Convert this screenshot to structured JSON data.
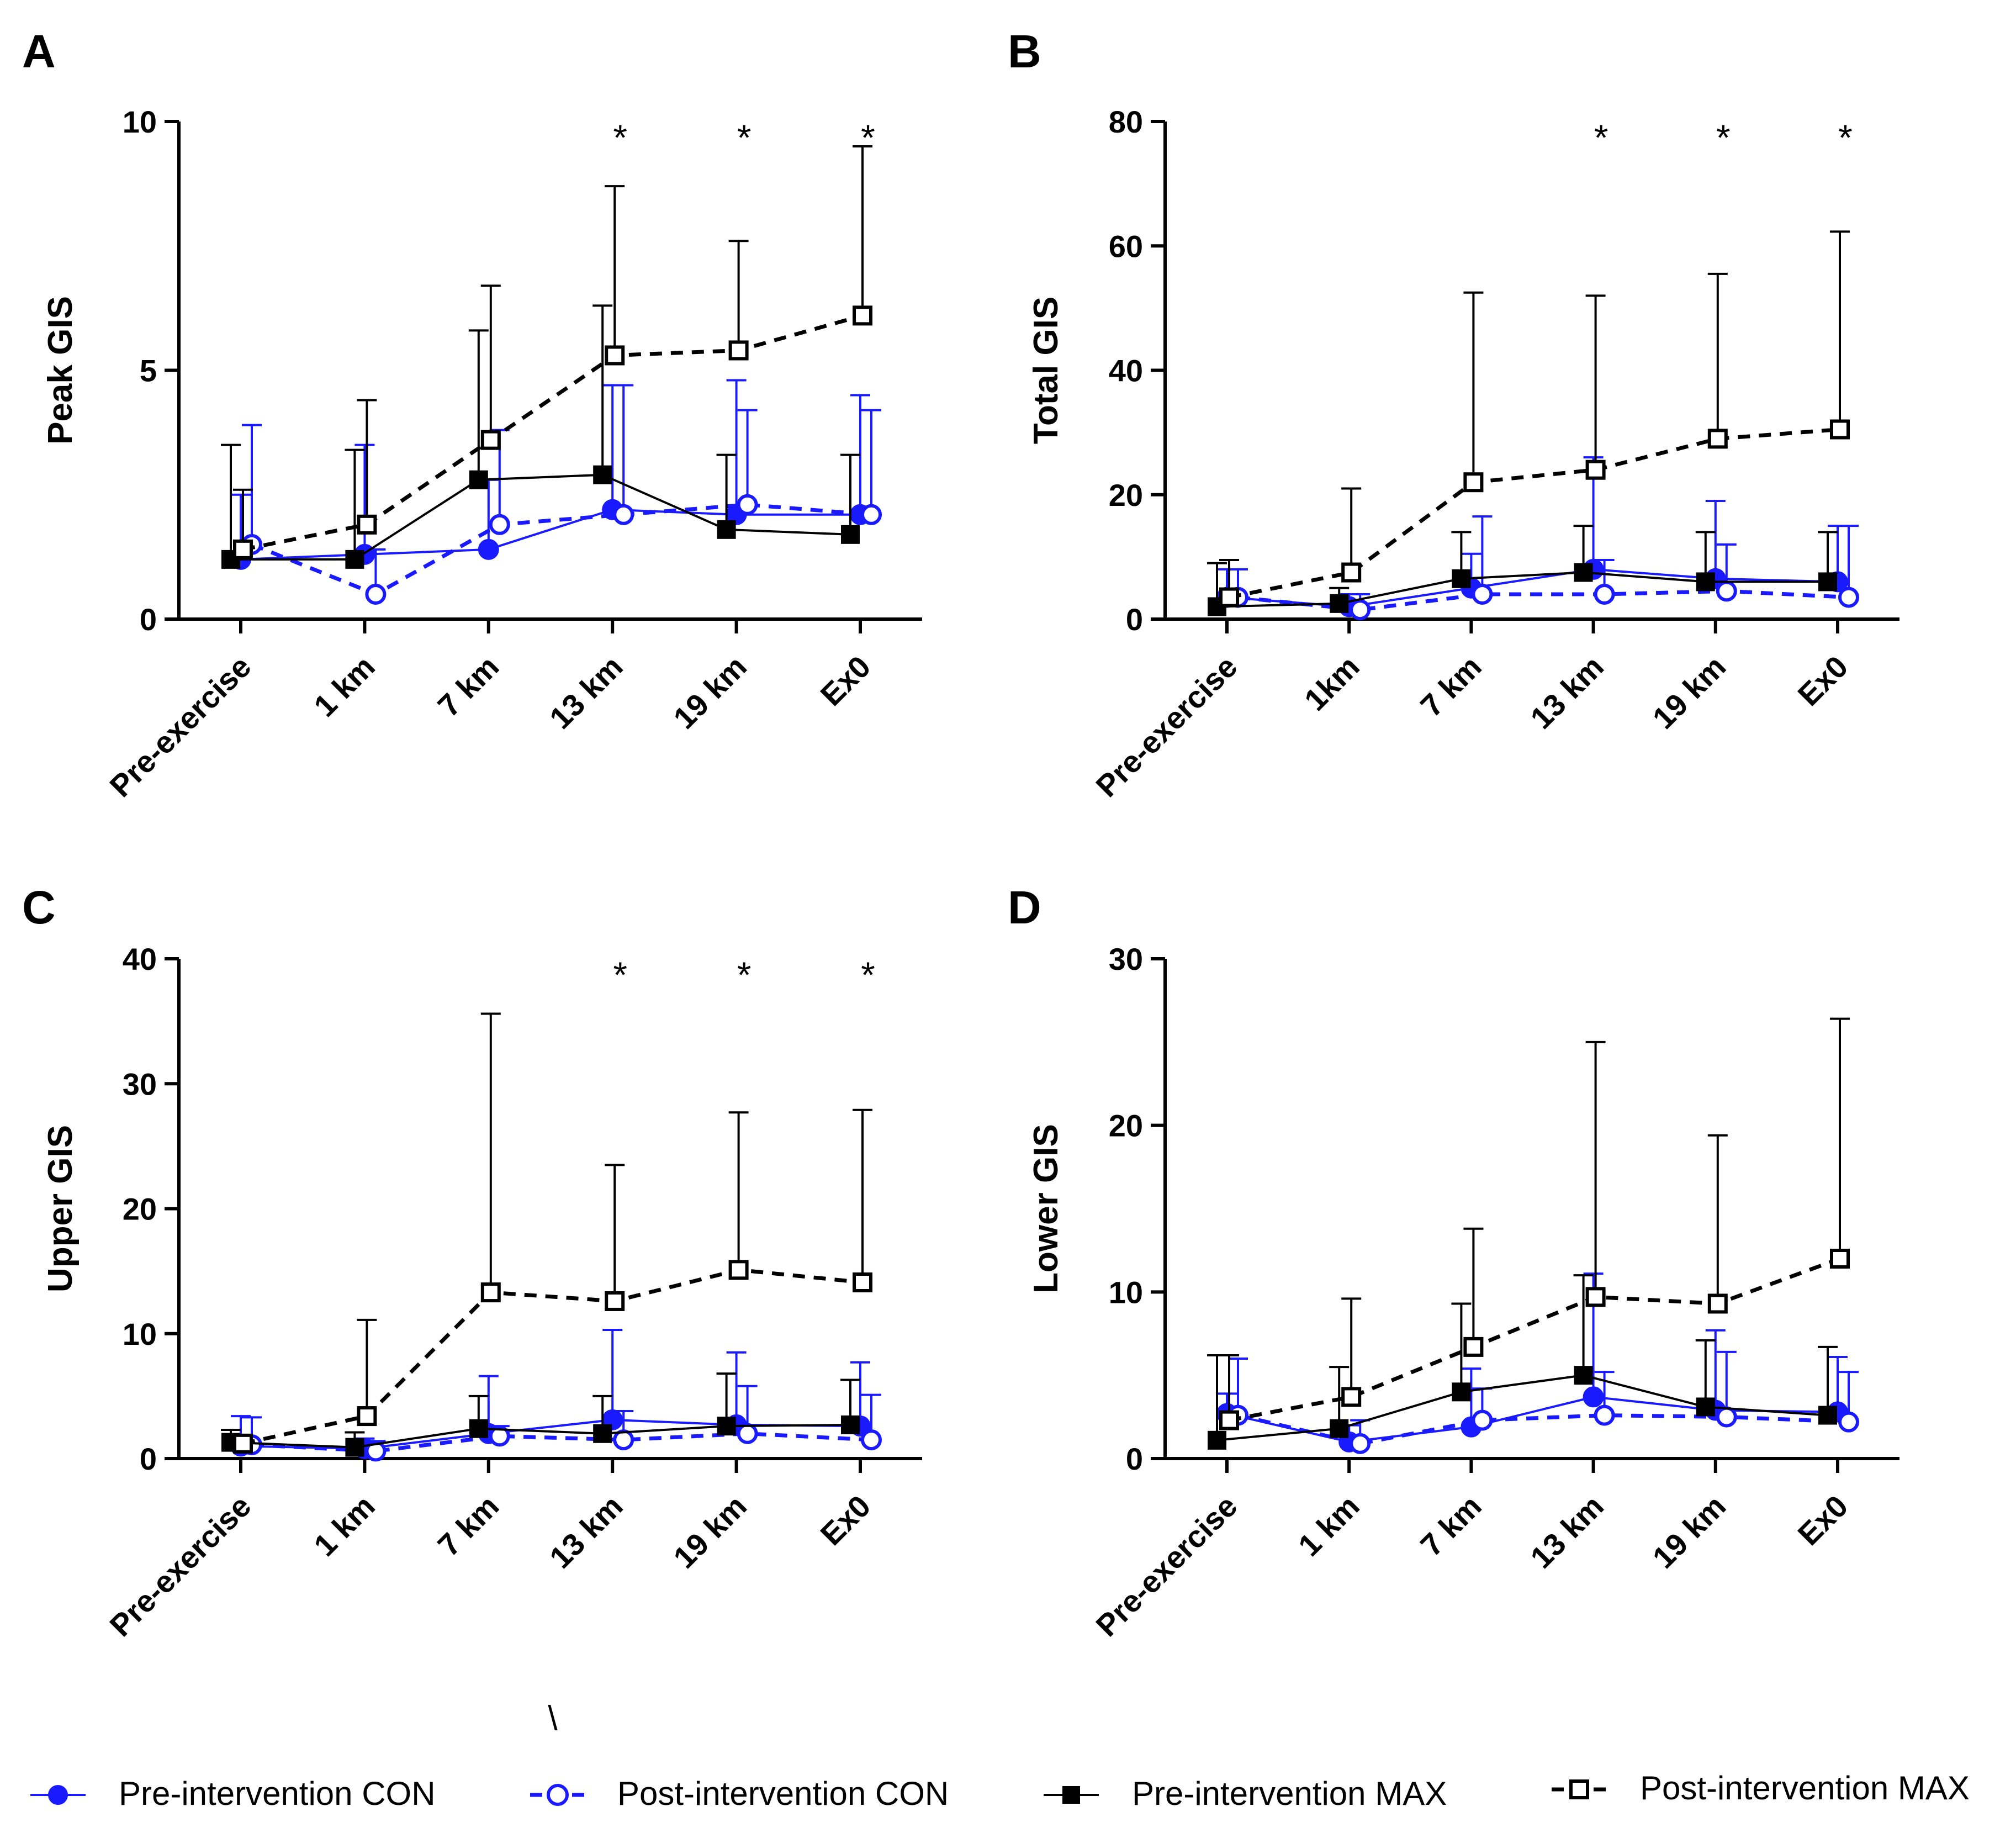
{
  "series_styles": [
    {
      "key": "pre_con",
      "color": "#1a1aff",
      "dash": false,
      "marker": "circle",
      "filled": true
    },
    {
      "key": "post_con",
      "color": "#1a1aff",
      "dash": true,
      "marker": "circle",
      "filled": false
    },
    {
      "key": "pre_max",
      "color": "#000000",
      "dash": false,
      "marker": "square",
      "filled": true
    },
    {
      "key": "post_max",
      "color": "#000000",
      "dash": true,
      "marker": "square",
      "filled": false
    }
  ],
  "legend": [
    {
      "key": "pre_con",
      "label": "Pre-intervention CON"
    },
    {
      "key": "post_con",
      "label": "Post-intervention CON"
    },
    {
      "key": "pre_max",
      "label": "Pre-intervention MAX"
    },
    {
      "key": "post_max",
      "label": "Post-intervention MAX"
    }
  ],
  "stray_mark": "\\",
  "chart_data": [
    {
      "panel": "A",
      "type": "line",
      "ylabel": "Peak GIS",
      "ylim": [
        0,
        10
      ],
      "yticks": [
        0,
        5,
        10
      ],
      "categories": [
        "Pre-exercise",
        "1 km",
        "7 km",
        "13 km",
        "19 km",
        "Ex0"
      ],
      "significance": [
        "",
        "",
        "",
        "*",
        "*",
        "*"
      ],
      "series": [
        {
          "name": "Pre-intervention CON",
          "values": [
            1.2,
            1.3,
            1.4,
            2.2,
            2.1,
            2.1
          ],
          "error": [
            1.3,
            2.2,
            1.4,
            2.5,
            2.7,
            2.4
          ]
        },
        {
          "name": "Post-intervention CON",
          "values": [
            1.5,
            0.5,
            1.9,
            2.1,
            2.3,
            2.1
          ],
          "error": [
            2.4,
            0.9,
            1.9,
            2.6,
            1.9,
            2.1
          ]
        },
        {
          "name": "Pre-intervention MAX",
          "values": [
            1.2,
            1.2,
            2.8,
            2.9,
            1.8,
            1.7
          ],
          "error": [
            2.3,
            2.2,
            3.0,
            3.4,
            1.5,
            1.6
          ]
        },
        {
          "name": "Post-intervention MAX",
          "values": [
            1.4,
            1.9,
            3.6,
            5.3,
            5.4,
            6.1
          ],
          "error": [
            1.2,
            2.5,
            3.1,
            3.4,
            2.2,
            3.4
          ]
        }
      ]
    },
    {
      "panel": "B",
      "type": "line",
      "ylabel": "Total GIS",
      "ylim": [
        0,
        80
      ],
      "yticks": [
        0,
        20,
        40,
        60,
        80
      ],
      "categories": [
        "Pre-exercise",
        "1km",
        "7 km",
        "13 km",
        "19 km",
        "Ex0"
      ],
      "significance": [
        "",
        "",
        "",
        "*",
        "*",
        "*"
      ],
      "series": [
        {
          "name": "Pre-intervention CON",
          "values": [
            3.5,
            2.0,
            5.0,
            8.0,
            6.5,
            6.0
          ],
          "error": [
            4.5,
            2.0,
            5.5,
            18.0,
            12.5,
            9.0
          ]
        },
        {
          "name": "Post-intervention CON",
          "values": [
            3.5,
            1.5,
            4.0,
            4.0,
            4.5,
            3.5
          ],
          "error": [
            4.5,
            2.5,
            12.5,
            5.5,
            7.5,
            11.5
          ]
        },
        {
          "name": "Pre-intervention MAX",
          "values": [
            2.0,
            2.5,
            6.5,
            7.5,
            6.0,
            6.0
          ],
          "error": [
            7.0,
            2.5,
            7.5,
            7.5,
            8.0,
            8.0
          ]
        },
        {
          "name": "Post-intervention MAX",
          "values": [
            3.5,
            7.5,
            22.0,
            24.0,
            29.0,
            30.5
          ],
          "error": [
            6.0,
            13.5,
            30.5,
            28.0,
            26.5,
            31.8
          ]
        }
      ]
    },
    {
      "panel": "C",
      "type": "line",
      "ylabel": "Upper GIS",
      "ylim": [
        0,
        40
      ],
      "yticks": [
        0,
        10,
        20,
        30,
        40
      ],
      "categories": [
        "Pre-exercise",
        "1 km",
        "7 km",
        "13 km",
        "19 km",
        "Ex0"
      ],
      "significance": [
        "",
        "",
        "",
        "*",
        "*",
        "*"
      ],
      "series": [
        {
          "name": "Pre-intervention CON",
          "values": [
            1.0,
            0.8,
            2.0,
            3.1,
            2.7,
            2.6
          ],
          "error": [
            2.4,
            0.8,
            4.6,
            7.2,
            5.8,
            5.1
          ]
        },
        {
          "name": "Post-intervention CON",
          "values": [
            1.1,
            0.6,
            1.8,
            1.5,
            2.0,
            1.5
          ],
          "error": [
            2.2,
            0.8,
            0.8,
            2.3,
            3.8,
            3.6
          ]
        },
        {
          "name": "Pre-intervention MAX",
          "values": [
            1.3,
            0.9,
            2.4,
            2.0,
            2.6,
            2.7
          ],
          "error": [
            1.0,
            1.2,
            2.6,
            3.0,
            4.2,
            3.6
          ]
        },
        {
          "name": "Post-intervention MAX",
          "values": [
            1.2,
            3.4,
            13.3,
            12.6,
            15.1,
            14.1
          ],
          "error": [
            0.5,
            7.7,
            22.3,
            10.9,
            12.6,
            13.8
          ]
        }
      ]
    },
    {
      "panel": "D",
      "type": "line",
      "ylabel": "Lower GIS",
      "ylim": [
        0,
        30
      ],
      "yticks": [
        0,
        10,
        20,
        30
      ],
      "categories": [
        "Pre-exercise",
        "1 km",
        "7 km",
        "13 km",
        "19 km",
        "Ex0"
      ],
      "significance": [
        "",
        "",
        "",
        "",
        "",
        ""
      ],
      "series": [
        {
          "name": "Pre-intervention CON",
          "values": [
            2.7,
            1.0,
            1.9,
            3.7,
            2.9,
            2.8
          ],
          "error": [
            1.2,
            1.0,
            3.5,
            7.4,
            4.8,
            3.3
          ]
        },
        {
          "name": "Post-intervention CON",
          "values": [
            2.6,
            0.9,
            2.3,
            2.6,
            2.5,
            2.2
          ],
          "error": [
            3.4,
            1.4,
            1.9,
            2.6,
            3.9,
            3.0
          ]
        },
        {
          "name": "Pre-intervention MAX",
          "values": [
            1.1,
            1.8,
            4.0,
            5.0,
            3.1,
            2.6
          ],
          "error": [
            5.1,
            3.7,
            5.3,
            6.0,
            4.0,
            4.1
          ]
        },
        {
          "name": "Post-intervention MAX",
          "values": [
            2.3,
            3.7,
            6.7,
            9.7,
            9.3,
            12.0
          ],
          "error": [
            3.9,
            5.9,
            7.1,
            15.3,
            10.1,
            14.4
          ]
        }
      ]
    }
  ]
}
